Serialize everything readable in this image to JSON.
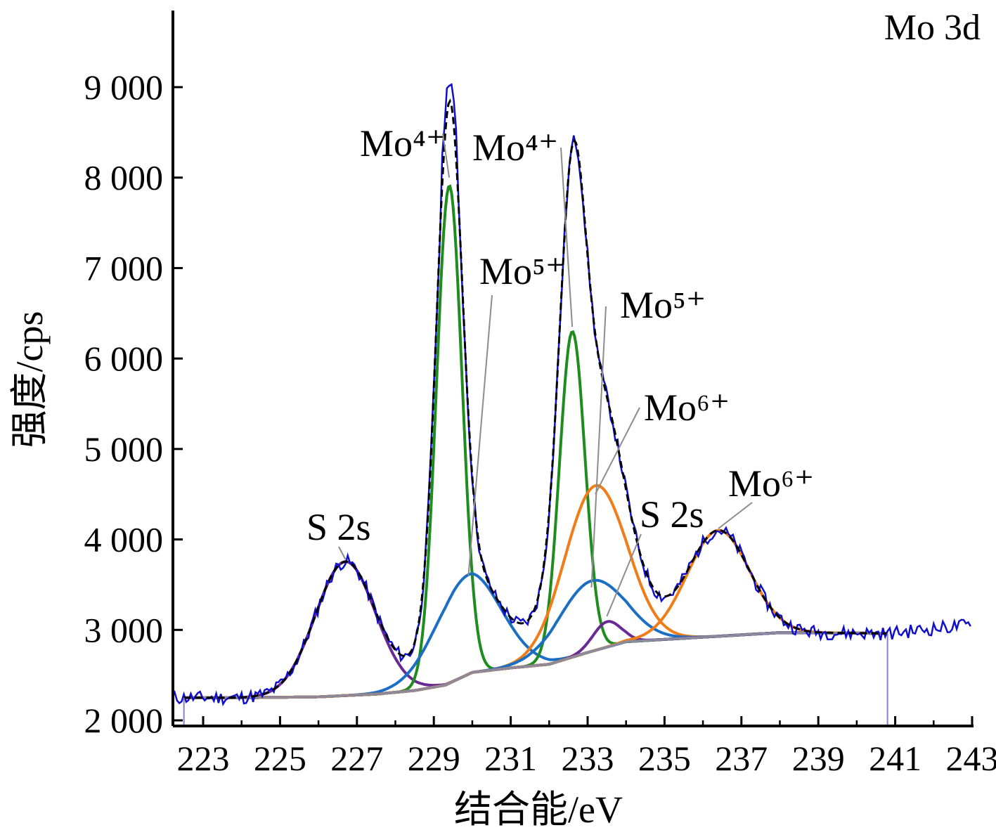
{
  "chart_data": {
    "type": "line",
    "panel_label": "Mo 3d",
    "xlabel": "结合能/eV",
    "ylabel": "强度/cps",
    "xlim": [
      222.2,
      243.2
    ],
    "ylim": [
      2000,
      9700
    ],
    "x_ticks": [
      223,
      225,
      227,
      229,
      231,
      233,
      235,
      237,
      239,
      241,
      243
    ],
    "x_ticks_minor": [
      224,
      226,
      228,
      230,
      232,
      234,
      236,
      238,
      240,
      242
    ],
    "y_ticks": [
      2000,
      3000,
      4000,
      5000,
      6000,
      7000,
      8000,
      9000
    ],
    "y_tick_labels": [
      "2 000",
      "3 000",
      "4 000",
      "5 000",
      "6 000",
      "7 000",
      "8 000",
      "9 000"
    ],
    "grid": false,
    "baseline": {
      "name": "",
      "color": "#8a8a9c",
      "x": [
        222.5,
        224.0,
        226.0,
        227.5,
        228.5,
        229.3,
        230.0,
        231.0,
        232.0,
        233.0,
        234.0,
        236.0,
        238.0,
        240.0,
        240.8
      ],
      "values": [
        2250,
        2250,
        2260,
        2290,
        2330,
        2390,
        2530,
        2580,
        2620,
        2750,
        2870,
        2920,
        2970,
        2965,
        2960
      ]
    },
    "components": [
      {
        "name": "S 2s",
        "color": "#6a2a96",
        "center": 226.7,
        "height": 1480,
        "fwhm": 1.85
      },
      {
        "name": "Mo4+",
        "color": "#1e8c1e",
        "center": 229.4,
        "height": 5500,
        "fwhm": 0.78
      },
      {
        "name": "Mo5+",
        "color": "#1a6fc4",
        "center": 229.9,
        "height": 1100,
        "fwhm": 2.0
      },
      {
        "name": "Mo4+",
        "color": "#1e8c1e",
        "center": 232.6,
        "height": 3600,
        "fwhm": 0.78
      },
      {
        "name": "Mo6+",
        "color": "#f07d1a",
        "center": 233.2,
        "height": 1820,
        "fwhm": 1.9
      },
      {
        "name": "Mo5+",
        "color": "#1a6fc4",
        "center": 233.1,
        "height": 780,
        "fwhm": 2.0
      },
      {
        "name": "S 2s",
        "color": "#6a2a96",
        "center": 233.5,
        "height": 280,
        "fwhm": 0.85
      },
      {
        "name": "Mo6+",
        "color": "#f07d1a",
        "center": 236.4,
        "height": 1170,
        "fwhm": 1.9
      }
    ],
    "envelope": {
      "name": "",
      "color": "#000000",
      "style": "dashed"
    },
    "raw_data": {
      "name": "",
      "color": "#1010cc",
      "x_range": [
        222.2,
        243.0
      ]
    },
    "annotations": [
      {
        "text": "S 2s",
        "x": 226.7,
        "y": 3780
      },
      {
        "text": "Mo⁴⁺",
        "x": 229.4,
        "y": 8000
      },
      {
        "text": "Mo⁴⁺",
        "x": 232.6,
        "y": 6350
      },
      {
        "text": "Mo⁵⁺",
        "x": 229.9,
        "y": 3600
      },
      {
        "text": "Mo⁵⁺",
        "x": 233.1,
        "y": 3470
      },
      {
        "text": "Mo⁶⁺",
        "x": 233.2,
        "y": 4500
      },
      {
        "text": "S 2s",
        "x": 233.5,
        "y": 3150
      },
      {
        "text": "Mo⁶⁺",
        "x": 236.4,
        "y": 4120
      }
    ]
  }
}
